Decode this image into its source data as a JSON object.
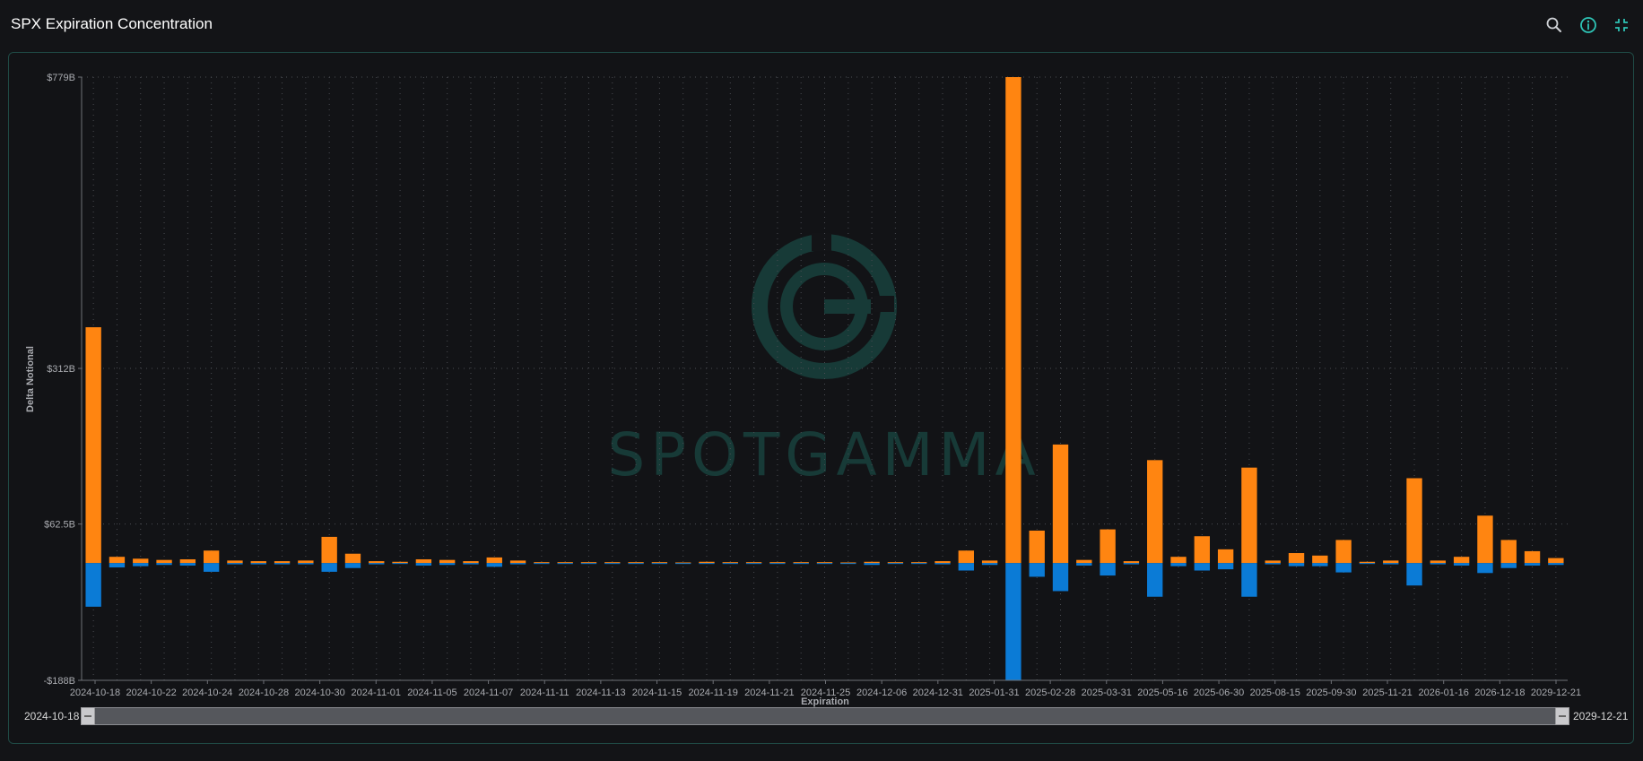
{
  "header": {
    "title": "SPX Expiration Concentration",
    "icons": [
      "zoom-icon",
      "info-icon",
      "collapse-icon"
    ],
    "accent": "#2ec4b6"
  },
  "watermark": {
    "text": "SPOTGAMMA",
    "color": "#173a37"
  },
  "slider": {
    "start_label": "2024-10-18",
    "end_label": "2029-12-21"
  },
  "colors": {
    "positive": "#ff8511",
    "negative": "#0b7bd6",
    "grid": "#4a4c52",
    "axis": "#6e7076",
    "text": "#a9abb0"
  },
  "chart_data": {
    "type": "bar",
    "ylabel": "Delta Notional",
    "xlabel": "Expiration",
    "ylim": [
      -188,
      779
    ],
    "yticks": [
      -188,
      62.5,
      312,
      779
    ],
    "ytick_labels": [
      "-$188B",
      "$62.5B",
      "$312B",
      "$779B"
    ],
    "xtick_labels": [
      "2024-10-18",
      "2024-10-22",
      "2024-10-24",
      "2024-10-28",
      "2024-10-30",
      "2024-11-01",
      "2024-11-05",
      "2024-11-07",
      "2024-11-11",
      "2024-11-13",
      "2024-11-15",
      "2024-11-19",
      "2024-11-21",
      "2024-11-25",
      "2024-12-06",
      "2024-12-31",
      "2025-01-31",
      "2025-02-28",
      "2025-03-31",
      "2025-05-16",
      "2025-06-30",
      "2025-08-15",
      "2025-09-30",
      "2025-11-21",
      "2026-01-16",
      "2026-12-18",
      "2029-12-21"
    ],
    "series": [
      {
        "name": "Positive",
        "values": [
          378,
          10,
          7,
          5,
          6,
          20,
          4,
          3,
          3,
          4,
          42,
          15,
          3,
          2,
          6,
          5,
          3,
          9,
          4,
          0,
          0,
          0,
          0,
          0,
          0,
          1,
          2,
          0,
          0,
          0,
          0,
          0,
          1,
          2,
          0,
          0,
          3,
          20,
          4,
          779,
          52,
          190,
          5,
          54,
          3,
          165,
          10,
          43,
          22,
          153,
          4,
          16,
          12,
          37,
          2,
          4,
          136,
          4,
          10,
          76,
          37,
          19,
          8
        ]
      },
      {
        "name": "Negative",
        "values": [
          -70,
          -7,
          -5,
          -3,
          -4,
          -14,
          -2,
          -2,
          -2,
          -2,
          -14,
          -8,
          -2,
          -1,
          -4,
          -3,
          -2,
          -6,
          -2,
          0,
          0,
          0,
          0,
          0,
          0,
          -1,
          -1,
          0,
          0,
          0,
          0,
          0,
          -1,
          -3,
          0,
          0,
          -2,
          -12,
          -3,
          -188,
          -22,
          -45,
          -4,
          -20,
          -2,
          -54,
          -5,
          -12,
          -10,
          -54,
          -2,
          -5,
          -5,
          -15,
          -1,
          -2,
          -36,
          -2,
          -4,
          -16,
          -8,
          -4,
          -3
        ]
      }
    ],
    "grid": true,
    "legend": "none"
  }
}
